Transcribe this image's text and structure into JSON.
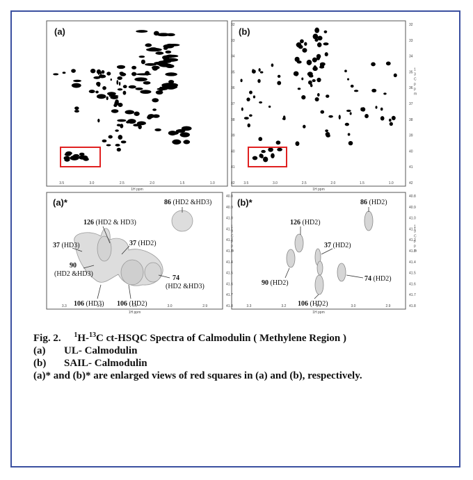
{
  "panels": [
    {
      "label": "(a)",
      "xticks": [
        "3.5",
        "3.0",
        "2.5",
        "2.0",
        "1.5",
        "1.0"
      ],
      "yticks": [
        "32",
        "33",
        "34",
        "35",
        "36",
        "37",
        "38",
        "39",
        "40",
        "41",
        "42"
      ],
      "xlabel": "1H ppm"
    },
    {
      "label": "(b)",
      "xticks": [
        "3.5",
        "3.0",
        "2.5",
        "2.0",
        "1.5",
        "1.0"
      ],
      "yticks": [
        "32",
        "33",
        "34",
        "35",
        "36",
        "37",
        "38",
        "39",
        "40",
        "41",
        "42"
      ],
      "xlabel": "1H ppm",
      "ylabel": [
        "1",
        "3",
        "C",
        "p",
        "p",
        "m"
      ]
    },
    {
      "label": "(a)*",
      "xticks": [
        "3.3",
        "3.2",
        "3.1",
        "3.0",
        "2.9"
      ],
      "yticks": [
        "40.8",
        "40.9",
        "41.0",
        "41.1",
        "41.2",
        "41.3",
        "41.4",
        "41.5",
        "41.6",
        "41.7",
        "41.8"
      ],
      "xlabel": "1H ppm",
      "ylabel": [
        "1",
        "3",
        "C",
        "p",
        "p",
        "m"
      ],
      "annotations": [
        {
          "num": "86",
          "text": "(HD2 &HD3)"
        },
        {
          "num": "126",
          "text": "(HD2 & HD3)"
        },
        {
          "num": "37",
          "text": "(HD3)"
        },
        {
          "num": "37",
          "text": "(HD2)"
        },
        {
          "num": "90",
          "text": "(HD2 &HD3)"
        },
        {
          "num": "74",
          "text": "(HD2 &HD3)"
        },
        {
          "num": "106",
          "text": "(HD3)"
        },
        {
          "num": "106",
          "text": "(HD2)"
        }
      ]
    },
    {
      "label": "(b)*",
      "xticks": [
        "3.3",
        "3.2",
        "3.1",
        "3.0",
        "2.9"
      ],
      "yticks": [
        "40.8",
        "40.9",
        "41.0",
        "41.1",
        "41.2",
        "41.3",
        "41.4",
        "41.5",
        "41.6",
        "41.7",
        "41.8"
      ],
      "xlabel": "1H ppm",
      "ylabel": [
        "1",
        "3",
        "C",
        "p",
        "p",
        "m"
      ],
      "annotations": [
        {
          "num": "86",
          "text": "(HD2)"
        },
        {
          "num": "126",
          "text": "(HD2)"
        },
        {
          "num": "37",
          "text": "(HD2)"
        },
        {
          "num": "90",
          "text": "(HD2)"
        },
        {
          "num": "74",
          "text": "(HD2)"
        },
        {
          "num": "106",
          "text": "(HD2)"
        }
      ]
    }
  ],
  "caption": {
    "fig_label": "Fig. 2.",
    "title_parts": [
      "1",
      "H-",
      "13",
      "C ct-HSQC Spectra of Calmodulin ( Methylene Region )"
    ],
    "items": [
      {
        "label": "(a)",
        "text": "UL- Calmodulin"
      },
      {
        "label": "(b)",
        "text": "SAIL- Calmodulin"
      }
    ],
    "note": "(a)* and (b)* are enlarged views of red squares in (a) and (b), respectively."
  }
}
